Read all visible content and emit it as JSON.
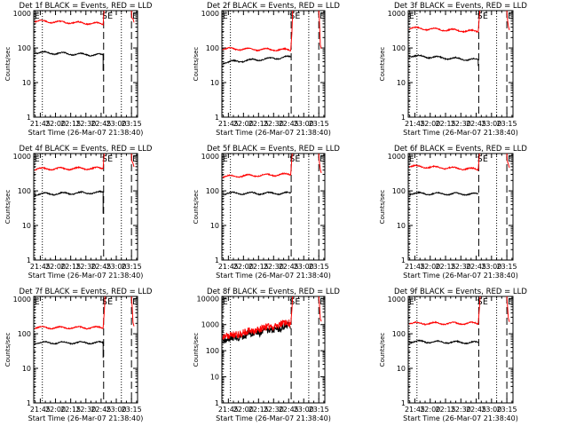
{
  "figure": {
    "background": "#ffffff",
    "colors": {
      "events": "#000000",
      "lld": "#ff0000",
      "axes": "#000000"
    }
  },
  "chart_data": [
    {
      "type": "line",
      "title": "Det 1f BLACK = Events, RED = LLD",
      "xlabel": "Start Time (26-Mar-07 21:38:40)",
      "ylabel": "Counts/sec",
      "x_ticks": [
        "21:45",
        "22:00",
        "22:15",
        "22:30",
        "22:45",
        "23:00",
        "23:15"
      ],
      "x_tick_minutes": [
        0,
        15,
        30,
        45,
        60,
        75,
        90
      ],
      "xlim_minutes": [
        -6.5,
        96
      ],
      "y_scale": "log",
      "ylim": [
        1,
        1200
      ],
      "y_ticks": [
        "1",
        "10",
        "100",
        "1000"
      ],
      "markers": [
        "S",
        "E",
        "E"
      ],
      "marker_minutes": [
        63.5,
        69,
        93.5
      ],
      "dotted_minutes": [
        -5.5,
        2,
        80
      ],
      "dashed_minutes": [
        62.5,
        90
      ],
      "series": [
        {
          "name": "BLACK = Events",
          "color": "#000000",
          "level_start": 75,
          "level_end": 62,
          "drop_to": 22
        },
        {
          "name": "RED = LLD",
          "color": "#ff0000",
          "level_start": 600,
          "level_end": 500,
          "drop_to": null
        }
      ]
    },
    {
      "type": "line",
      "title": "Det 2f BLACK = Events, RED = LLD",
      "xlabel": "Start Time (26-Mar-07 21:38:40)",
      "ylabel": "Counts/sec",
      "x_ticks": [
        "21:45",
        "22:00",
        "22:15",
        "22:30",
        "22:45",
        "23:00",
        "23:15"
      ],
      "x_tick_minutes": [
        0,
        15,
        30,
        45,
        60,
        75,
        90
      ],
      "xlim_minutes": [
        -6.5,
        96
      ],
      "y_scale": "log",
      "ylim": [
        1,
        1200
      ],
      "y_ticks": [
        "1",
        "10",
        "100",
        "1000"
      ],
      "markers": [
        "S",
        "E",
        "E"
      ],
      "marker_minutes": [
        63.5,
        69,
        93.5
      ],
      "dotted_minutes": [
        -5.5,
        2,
        80
      ],
      "dashed_minutes": [
        62.5,
        90
      ],
      "series": [
        {
          "name": "BLACK = Events",
          "color": "#000000",
          "level_start": 38,
          "level_end": 55,
          "drop_to": null
        },
        {
          "name": "RED = LLD",
          "color": "#ff0000",
          "level_start": 95,
          "level_end": 88,
          "drop_to": null
        }
      ]
    },
    {
      "type": "line",
      "title": "Det 3f BLACK = Events, RED = LLD",
      "xlabel": "Start Time (26-Mar-07 21:38:40)",
      "ylabel": "Counts/sec",
      "x_ticks": [
        "21:45",
        "22:00",
        "22:15",
        "22:30",
        "22:45",
        "23:00",
        "23:15"
      ],
      "x_tick_minutes": [
        0,
        15,
        30,
        45,
        60,
        75,
        90
      ],
      "xlim_minutes": [
        -6.5,
        96
      ],
      "y_scale": "log",
      "ylim": [
        1,
        1200
      ],
      "y_ticks": [
        "1",
        "10",
        "100",
        "1000"
      ],
      "markers": [
        "S",
        "E",
        "E"
      ],
      "marker_minutes": [
        63.5,
        69,
        93.5
      ],
      "dotted_minutes": [
        -5.5,
        2,
        80
      ],
      "dashed_minutes": [
        62.5,
        90
      ],
      "series": [
        {
          "name": "BLACK = Events",
          "color": "#000000",
          "level_start": 60,
          "level_end": 45,
          "drop_to": 30
        },
        {
          "name": "RED = LLD",
          "color": "#ff0000",
          "level_start": 380,
          "level_end": 300,
          "drop_to": null
        }
      ]
    },
    {
      "type": "line",
      "title": "Det 4f BLACK = Events, RED = LLD",
      "xlabel": "Start Time (26-Mar-07 21:38:40)",
      "ylabel": "Counts/sec",
      "x_ticks": [
        "21:45",
        "22:00",
        "22:15",
        "22:30",
        "22:45",
        "23:00",
        "23:15"
      ],
      "x_tick_minutes": [
        0,
        15,
        30,
        45,
        60,
        75,
        90
      ],
      "xlim_minutes": [
        -6.5,
        96
      ],
      "y_scale": "log",
      "ylim": [
        1,
        1200
      ],
      "y_ticks": [
        "1",
        "10",
        "100",
        "1000"
      ],
      "markers": [
        "S",
        "E",
        "E"
      ],
      "marker_minutes": [
        63.5,
        69,
        93.5
      ],
      "dotted_minutes": [
        -5.5,
        2,
        80
      ],
      "dashed_minutes": [
        62.5,
        90
      ],
      "series": [
        {
          "name": "BLACK = Events",
          "color": "#000000",
          "level_start": 80,
          "level_end": 90,
          "drop_to": 22
        },
        {
          "name": "RED = LLD",
          "color": "#ff0000",
          "level_start": 430,
          "level_end": 450,
          "drop_to": null
        }
      ]
    },
    {
      "type": "line",
      "title": "Det 5f BLACK = Events, RED = LLD",
      "xlabel": "Start Time (26-Mar-07 21:38:40)",
      "ylabel": "Counts/sec",
      "x_ticks": [
        "21:45",
        "22:00",
        "22:15",
        "22:30",
        "22:45",
        "23:00",
        "23:15"
      ],
      "x_tick_minutes": [
        0,
        15,
        30,
        45,
        60,
        75,
        90
      ],
      "xlim_minutes": [
        -6.5,
        96
      ],
      "y_scale": "log",
      "ylim": [
        1,
        1200
      ],
      "y_ticks": [
        "1",
        "10",
        "100",
        "1000"
      ],
      "markers": [
        "S",
        "E",
        "E"
      ],
      "marker_minutes": [
        63.5,
        69,
        93.5
      ],
      "dotted_minutes": [
        -5.5,
        2,
        80
      ],
      "dashed_minutes": [
        62.5,
        90
      ],
      "series": [
        {
          "name": "BLACK = Events",
          "color": "#000000",
          "level_start": 85,
          "level_end": 85,
          "drop_to": null
        },
        {
          "name": "RED = LLD",
          "color": "#ff0000",
          "level_start": 260,
          "level_end": 300,
          "drop_to": null
        }
      ]
    },
    {
      "type": "line",
      "title": "Det 6f BLACK = Events, RED = LLD",
      "xlabel": "Start Time (26-Mar-07 21:38:40)",
      "ylabel": "Counts/sec",
      "x_ticks": [
        "21:45",
        "22:00",
        "22:15",
        "22:30",
        "22:45",
        "23:00",
        "23:15"
      ],
      "x_tick_minutes": [
        0,
        15,
        30,
        45,
        60,
        75,
        90
      ],
      "xlim_minutes": [
        -6.5,
        96
      ],
      "y_scale": "log",
      "ylim": [
        1,
        1200
      ],
      "y_ticks": [
        "1",
        "10",
        "100",
        "1000"
      ],
      "markers": [
        "S",
        "E",
        "E"
      ],
      "marker_minutes": [
        63.5,
        69,
        93.5
      ],
      "dotted_minutes": [
        -5.5,
        2,
        80
      ],
      "dashed_minutes": [
        62.5,
        90
      ],
      "series": [
        {
          "name": "BLACK = Events",
          "color": "#000000",
          "level_start": 85,
          "level_end": 80,
          "drop_to": null
        },
        {
          "name": "RED = LLD",
          "color": "#ff0000",
          "level_start": 520,
          "level_end": 420,
          "drop_to": null
        }
      ]
    },
    {
      "type": "line",
      "title": "Det 7f BLACK = Events, RED = LLD",
      "xlabel": "Start Time (26-Mar-07 21:38:40)",
      "ylabel": "Counts/sec",
      "x_ticks": [
        "21:45",
        "22:00",
        "22:15",
        "22:30",
        "22:45",
        "23:00",
        "23:15"
      ],
      "x_tick_minutes": [
        0,
        15,
        30,
        45,
        60,
        75,
        90
      ],
      "xlim_minutes": [
        -6.5,
        96
      ],
      "y_scale": "log",
      "ylim": [
        1,
        1200
      ],
      "y_ticks": [
        "1",
        "10",
        "100",
        "1000"
      ],
      "markers": [
        "S",
        "E",
        "E"
      ],
      "marker_minutes": [
        63.5,
        69,
        93.5
      ],
      "dotted_minutes": [
        -5.5,
        2,
        80
      ],
      "dashed_minutes": [
        62.5,
        90
      ],
      "series": [
        {
          "name": "BLACK = Events",
          "color": "#000000",
          "level_start": 55,
          "level_end": 55,
          "drop_to": 20
        },
        {
          "name": "RED = LLD",
          "color": "#ff0000",
          "level_start": 150,
          "level_end": 150,
          "drop_to": null
        }
      ]
    },
    {
      "type": "line",
      "title": "Det 8f BLACK = Events, RED = LLD",
      "xlabel": "Start Time (26-Mar-07 21:38:40)",
      "ylabel": "Counts/sec",
      "x_ticks": [
        "21:45",
        "22:00",
        "22:15",
        "22:30",
        "22:45",
        "23:00",
        "23:15"
      ],
      "x_tick_minutes": [
        0,
        15,
        30,
        45,
        60,
        75,
        90
      ],
      "xlim_minutes": [
        -6.5,
        96
      ],
      "y_scale": "log",
      "ylim": [
        1,
        12000
      ],
      "y_ticks": [
        "1",
        "10",
        "100",
        "1000",
        "10000"
      ],
      "markers": [
        "S",
        "E",
        "E"
      ],
      "marker_minutes": [
        63.5,
        69,
        93.5
      ],
      "dotted_minutes": [
        -5.5,
        2,
        80
      ],
      "dashed_minutes": [
        62.5,
        90
      ],
      "series": [
        {
          "name": "BLACK = Events",
          "color": "#000000",
          "level_start": 250,
          "level_end": 900,
          "drop_to": null
        },
        {
          "name": "RED = LLD",
          "color": "#ff0000",
          "level_start": 320,
          "level_end": 1200,
          "drop_to": null
        }
      ]
    },
    {
      "type": "line",
      "title": "Det 9f BLACK = Events, RED = LLD",
      "xlabel": "Start Time (26-Mar-07 21:38:40)",
      "ylabel": "Counts/sec",
      "x_ticks": [
        "21:45",
        "22:00",
        "22:15",
        "22:30",
        "22:45",
        "23:00",
        "23:15"
      ],
      "x_tick_minutes": [
        0,
        15,
        30,
        45,
        60,
        75,
        90
      ],
      "xlim_minutes": [
        -6.5,
        96
      ],
      "y_scale": "log",
      "ylim": [
        1,
        1200
      ],
      "y_ticks": [
        "1",
        "10",
        "100",
        "1000"
      ],
      "markers": [
        "S",
        "E",
        "E"
      ],
      "marker_minutes": [
        63.5,
        69,
        93.5
      ],
      "dotted_minutes": [
        -5.5,
        2,
        80
      ],
      "dashed_minutes": [
        62.5,
        90
      ],
      "series": [
        {
          "name": "BLACK = Events",
          "color": "#000000",
          "level_start": 60,
          "level_end": 55,
          "drop_to": null
        },
        {
          "name": "RED = LLD",
          "color": "#ff0000",
          "level_start": 200,
          "level_end": 200,
          "drop_to": null
        }
      ]
    }
  ]
}
